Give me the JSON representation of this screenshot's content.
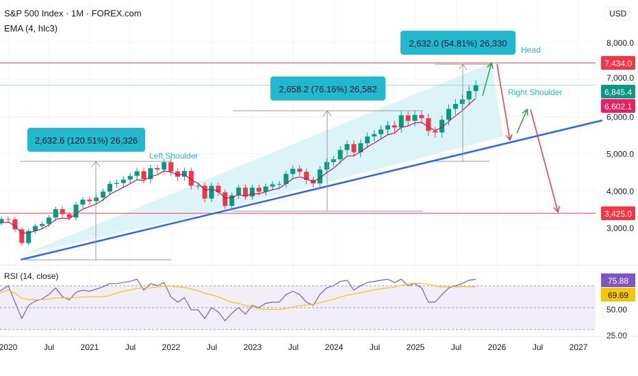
{
  "header": {
    "title": "S&P 500 Index · 1M · FOREX.com",
    "indicator": "EMA (4, hlc3)",
    "currency": "USD",
    "rsi_title": "RSI (14, close)"
  },
  "chart_data": {
    "type": "candlestick",
    "symbol": "S&P 500 Index",
    "interval": "1M",
    "start": "2019-11",
    "closes": [
      3141,
      3231,
      3226,
      2954,
      2585,
      2912,
      3044,
      3100,
      3271,
      3500,
      3363,
      3270,
      3622,
      3756,
      3714,
      3811,
      3973,
      4181,
      4204,
      4298,
      4395,
      4523,
      4308,
      4605,
      4567,
      4766,
      4516,
      4374,
      4530,
      4132,
      4132,
      3785,
      4130,
      3955,
      3586,
      3872,
      4080,
      3840,
      4077,
      3970,
      4109,
      4169,
      4180,
      4450,
      4589,
      4508,
      4288,
      4194,
      4568,
      4770,
      4846,
      5096,
      5254,
      5036,
      5278,
      5460,
      5522,
      5648,
      5762,
      5705,
      6032,
      5882,
      6041,
      5955,
      5612,
      5569,
      5912,
      6205,
      6339,
      6460,
      6688,
      6840
    ],
    "y_ticks": [
      8000,
      7000,
      6000,
      5000,
      4000,
      3000
    ],
    "y_tick_labels": [
      "8,000.0",
      "7,000.0",
      "6,000.0",
      "5,000.0",
      "4,000.0",
      "3,000.0"
    ],
    "x_ticks": [
      "2020",
      "Jul",
      "2021",
      "Jul",
      "2022",
      "Jul",
      "2023",
      "Jul",
      "2024",
      "Jul",
      "2025",
      "Jul",
      "2026",
      "Jul",
      "2027"
    ],
    "price_labels": [
      {
        "value": "7,434.0",
        "color": "#f23645"
      },
      {
        "value": "6,845.4",
        "color": "#089981"
      },
      {
        "value": "6,602.1",
        "color": "#e91e63"
      },
      {
        "value": "3,425.0",
        "color": "#f23645"
      }
    ],
    "measures": [
      {
        "text": "2,632.6 (120.51%) 26,326"
      },
      {
        "text": "2,658.2 (76.16%) 26,582"
      },
      {
        "text": "2,632.0 (54.81%) 26,330"
      }
    ],
    "annotations": [
      "Left Shoulder",
      "Head",
      "Right Shoulder"
    ],
    "rsi": {
      "values": [
        62,
        66,
        70,
        55,
        40,
        52,
        56,
        58,
        62,
        68,
        60,
        57,
        64,
        66,
        65,
        67,
        69,
        72,
        72,
        73,
        74,
        76,
        66,
        72,
        70,
        73,
        60,
        55,
        59,
        48,
        48,
        40,
        50,
        46,
        38,
        45,
        50,
        44,
        52,
        50,
        54,
        55,
        55,
        62,
        65,
        62,
        55,
        52,
        62,
        68,
        70,
        74,
        75,
        66,
        70,
        73,
        74,
        75,
        76,
        73,
        76,
        70,
        72,
        68,
        55,
        55,
        62,
        68,
        70,
        72,
        75,
        76
      ],
      "ticks": [
        "50.00",
        "25.00"
      ],
      "last": "75.88",
      "ma_last": "69.69",
      "colors": {
        "rsi": "#7e57c2",
        "ma": "#f7c600"
      }
    },
    "colors": {
      "up": "#089981",
      "down": "#f23645",
      "ema": "#b2185b",
      "trend": "#2962ff",
      "measure": "#22b8cf"
    }
  }
}
